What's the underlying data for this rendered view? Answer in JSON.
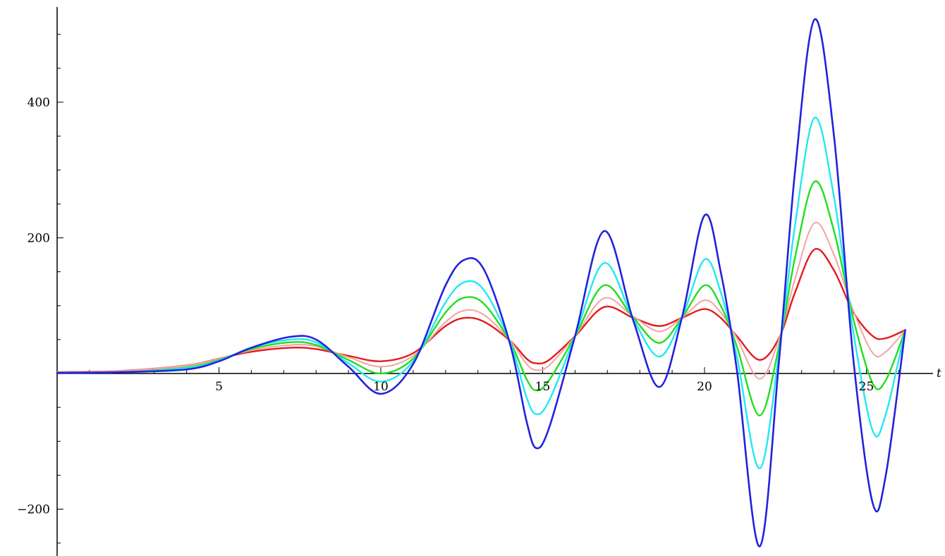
{
  "chart_data": {
    "type": "line",
    "xlabel": "t",
    "ylabel": "",
    "xlim": [
      0,
      26.3
    ],
    "ylim": [
      -265,
      540
    ],
    "x_ticks": [
      5,
      10,
      15,
      20,
      25
    ],
    "x_tick_labels": [
      "5",
      "10",
      "15",
      "20",
      "25"
    ],
    "y_ticks": [
      -200,
      200,
      400
    ],
    "y_tick_labels": [
      "-200",
      "200",
      "400"
    ],
    "grid": false,
    "legend": "none",
    "series": [
      {
        "color": "#e41a1c",
        "width": 2.4,
        "points": [
          [
            0,
            2
          ],
          [
            2,
            4
          ],
          [
            4,
            12
          ],
          [
            5,
            22
          ],
          [
            6,
            32
          ],
          [
            7.2,
            38
          ],
          [
            8,
            36
          ],
          [
            9,
            26
          ],
          [
            10,
            18
          ],
          [
            11,
            30
          ],
          [
            12,
            70
          ],
          [
            12.6,
            82
          ],
          [
            13.2,
            76
          ],
          [
            14,
            48
          ],
          [
            14.5,
            22
          ],
          [
            14.8,
            15
          ],
          [
            15.2,
            20
          ],
          [
            16,
            55
          ],
          [
            16.9,
            98
          ],
          [
            17.8,
            82
          ],
          [
            18.6,
            70
          ],
          [
            19.3,
            82
          ],
          [
            20,
            95
          ],
          [
            20.5,
            82
          ],
          [
            21,
            55
          ],
          [
            21.7,
            20
          ],
          [
            22.3,
            52
          ],
          [
            22.8,
            120
          ],
          [
            23.4,
            183
          ],
          [
            24,
            152
          ],
          [
            24.6,
            90
          ],
          [
            25.2,
            55
          ],
          [
            25.6,
            52
          ],
          [
            26.2,
            64
          ]
        ]
      },
      {
        "color": "#f4a3a3",
        "width": 2.0,
        "points": [
          [
            0,
            2
          ],
          [
            2,
            4
          ],
          [
            4,
            12
          ],
          [
            5,
            22
          ],
          [
            6,
            34
          ],
          [
            7.2,
            42
          ],
          [
            8,
            40
          ],
          [
            9,
            24
          ],
          [
            10,
            10
          ],
          [
            11,
            26
          ],
          [
            12,
            76
          ],
          [
            12.6,
            93
          ],
          [
            13.2,
            86
          ],
          [
            14,
            48
          ],
          [
            14.5,
            14
          ],
          [
            14.8,
            5
          ],
          [
            15.2,
            12
          ],
          [
            16,
            55
          ],
          [
            16.9,
            111
          ],
          [
            17.8,
            84
          ],
          [
            18.6,
            62
          ],
          [
            19.3,
            82
          ],
          [
            20,
            108
          ],
          [
            20.5,
            90
          ],
          [
            21,
            52
          ],
          [
            21.7,
            -8
          ],
          [
            22.3,
            50
          ],
          [
            22.8,
            140
          ],
          [
            23.4,
            222
          ],
          [
            24,
            175
          ],
          [
            24.6,
            92
          ],
          [
            25.2,
            30
          ],
          [
            25.6,
            32
          ],
          [
            26.2,
            64
          ]
        ]
      },
      {
        "color": "#22dd22",
        "width": 2.4,
        "points": [
          [
            0,
            1
          ],
          [
            2,
            2
          ],
          [
            4,
            9
          ],
          [
            5,
            20
          ],
          [
            6,
            36
          ],
          [
            7.2,
            46
          ],
          [
            8,
            42
          ],
          [
            9,
            20
          ],
          [
            10,
            0
          ],
          [
            11,
            22
          ],
          [
            12,
            90
          ],
          [
            12.6,
            112
          ],
          [
            13.2,
            102
          ],
          [
            14,
            46
          ],
          [
            14.5,
            -8
          ],
          [
            14.8,
            -25
          ],
          [
            15.2,
            -10
          ],
          [
            16,
            55
          ],
          [
            16.9,
            130
          ],
          [
            17.8,
            82
          ],
          [
            18.6,
            45
          ],
          [
            19.3,
            82
          ],
          [
            20,
            130
          ],
          [
            20.5,
            100
          ],
          [
            21,
            40
          ],
          [
            21.7,
            -62
          ],
          [
            22.3,
            40
          ],
          [
            22.8,
            172
          ],
          [
            23.4,
            283
          ],
          [
            24,
            210
          ],
          [
            24.6,
            80
          ],
          [
            25.2,
            -15
          ],
          [
            25.6,
            -10
          ],
          [
            26.2,
            64
          ]
        ]
      },
      {
        "color": "#22e8f0",
        "width": 2.4,
        "points": [
          [
            0,
            1
          ],
          [
            2,
            2
          ],
          [
            4,
            8
          ],
          [
            5,
            19
          ],
          [
            6,
            38
          ],
          [
            7.2,
            50
          ],
          [
            8,
            46
          ],
          [
            9,
            15
          ],
          [
            10,
            -12
          ],
          [
            11,
            18
          ],
          [
            12,
            105
          ],
          [
            12.6,
            135
          ],
          [
            13.2,
            122
          ],
          [
            14,
            45
          ],
          [
            14.5,
            -35
          ],
          [
            14.8,
            -60
          ],
          [
            15.2,
            -40
          ],
          [
            16,
            55
          ],
          [
            16.9,
            163
          ],
          [
            17.8,
            80
          ],
          [
            18.6,
            25
          ],
          [
            19.3,
            82
          ],
          [
            20,
            168
          ],
          [
            20.5,
            120
          ],
          [
            21,
            25
          ],
          [
            21.7,
            -140
          ],
          [
            22.3,
            30
          ],
          [
            22.8,
            220
          ],
          [
            23.4,
            377
          ],
          [
            24,
            260
          ],
          [
            24.6,
            60
          ],
          [
            25.2,
            -85
          ],
          [
            25.6,
            -60
          ],
          [
            26.2,
            64
          ]
        ]
      },
      {
        "color": "#2222dd",
        "width": 2.6,
        "points": [
          [
            0,
            1
          ],
          [
            2,
            2
          ],
          [
            4,
            6
          ],
          [
            5,
            18
          ],
          [
            6,
            38
          ],
          [
            7.2,
            54
          ],
          [
            8,
            50
          ],
          [
            9,
            10
          ],
          [
            10,
            -30
          ],
          [
            11,
            14
          ],
          [
            12,
            130
          ],
          [
            12.6,
            168
          ],
          [
            13.2,
            152
          ],
          [
            14,
            42
          ],
          [
            14.5,
            -70
          ],
          [
            14.8,
            -110
          ],
          [
            15.2,
            -80
          ],
          [
            16,
            55
          ],
          [
            16.9,
            210
          ],
          [
            17.8,
            78
          ],
          [
            18.6,
            -20
          ],
          [
            19.3,
            82
          ],
          [
            20,
            233
          ],
          [
            20.5,
            150
          ],
          [
            21,
            5
          ],
          [
            21.7,
            -255
          ],
          [
            22.3,
            18
          ],
          [
            22.8,
            300
          ],
          [
            23.4,
            522
          ],
          [
            24,
            350
          ],
          [
            24.6,
            20
          ],
          [
            25.2,
            -192
          ],
          [
            25.6,
            -150
          ],
          [
            26.2,
            64
          ]
        ]
      }
    ]
  }
}
